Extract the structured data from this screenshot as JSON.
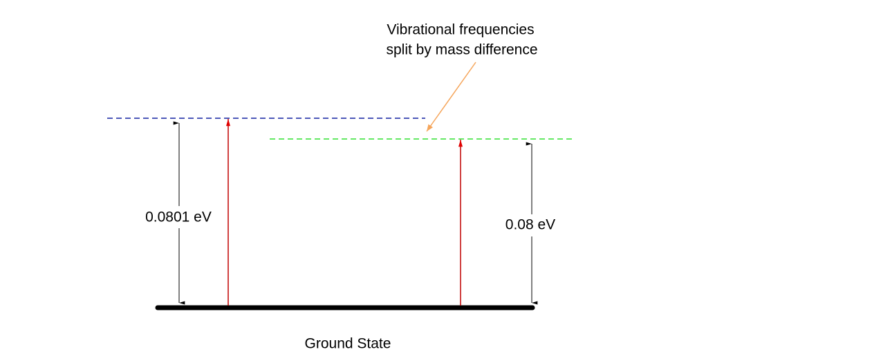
{
  "annotation": {
    "lines": [
      "Vibrational frequencies",
      "split by mass difference"
    ]
  },
  "levels": [
    {
      "label": "0.0801 eV"
    },
    {
      "label": "0.08 eV"
    }
  ],
  "ground_state": {
    "label": "Ground State"
  }
}
